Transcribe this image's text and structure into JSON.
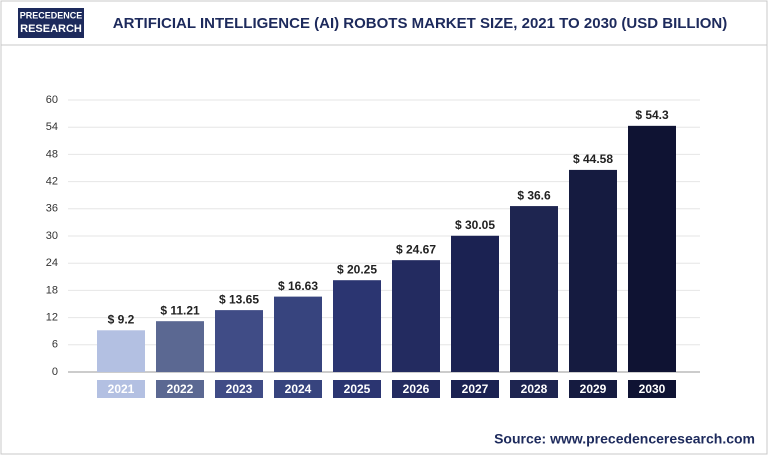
{
  "chart_data": {
    "type": "bar",
    "logo": [
      "PRECEDENCE",
      "RESEARCH"
    ],
    "title": "ARTIFICIAL INTELLIGENCE (AI) ROBOTS MARKET SIZE, 2021 TO 2030 (USD BILLION)",
    "categories": [
      "2021",
      "2022",
      "2023",
      "2024",
      "2025",
      "2026",
      "2027",
      "2028",
      "2029",
      "2030"
    ],
    "values": [
      9.2,
      11.21,
      13.65,
      16.63,
      20.25,
      24.67,
      30.05,
      36.6,
      44.58,
      54.3
    ],
    "value_labels": [
      "$ 9.2",
      "$ 11.21",
      "$ 13.65",
      "$ 16.63",
      "$ 20.25",
      "$ 24.67",
      "$ 30.05",
      "$ 36.6",
      "$ 44.58",
      "$ 54.3"
    ],
    "colors": [
      "#b3c0e2",
      "#5b6892",
      "#404c86",
      "#37447e",
      "#2b3571",
      "#232b60",
      "#1b2252",
      "#1e2550",
      "#151b40",
      "#0f1333"
    ],
    "ylim": [
      0,
      60
    ],
    "yticks": [
      0,
      6,
      12,
      18,
      24,
      30,
      36,
      42,
      48,
      54,
      60
    ],
    "grid": true,
    "source": "Source: www.precedenceresearch.com"
  }
}
